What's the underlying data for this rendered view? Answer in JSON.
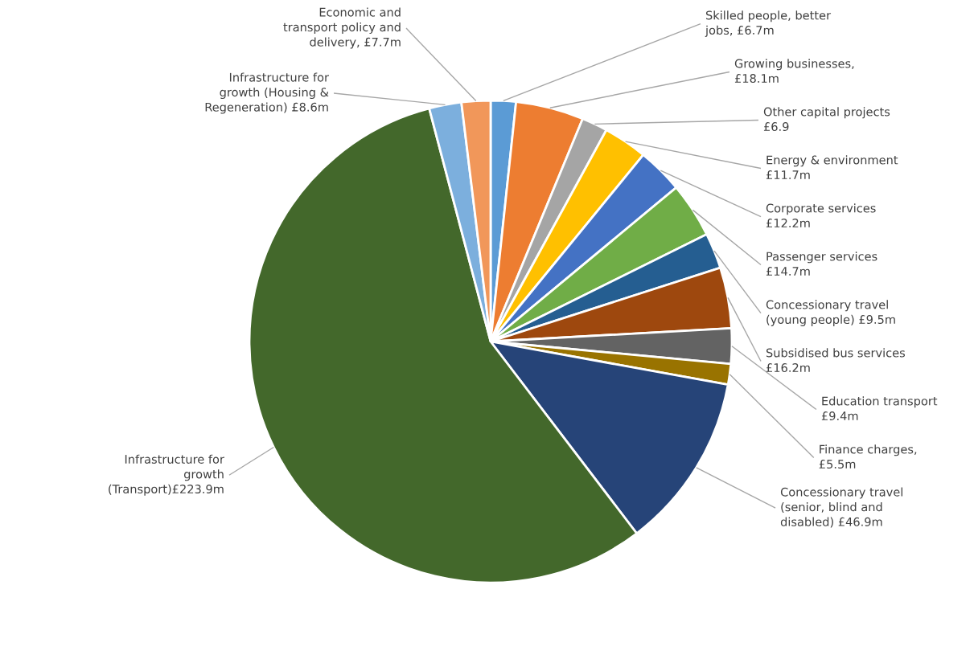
{
  "chart_data": {
    "type": "pie",
    "categories": [
      "Skilled people, better\njobs, £6.7m",
      "Growing businesses,\n£18.1m",
      "Other capital projects\n£6.9",
      "Energy & environment\n£11.7m",
      "Corporate services\n£12.2m",
      "Passenger services\n£14.7m",
      "Concessionary travel\n(young people) £9.5m",
      "Subsidised bus services\n£16.2m",
      "Education transport\n£9.4m",
      "Finance charges,\n£5.5m",
      "Concessionary travel\n(senior, blind and\ndisabled) £46.9m",
      "Infrastructure for\ngrowth\n(Transport)£223.9m",
      "Infrastructure for\ngrowth (Housing &\nRegeneration) £8.6m",
      "Economic and\ntransport policy and\ndelivery, £7.7m"
    ],
    "values": [
      6.7,
      18.1,
      6.9,
      11.7,
      12.2,
      14.7,
      9.5,
      16.2,
      9.4,
      5.5,
      46.9,
      223.9,
      8.6,
      7.7
    ],
    "colors": [
      "#5b9bd5",
      "#ed7d31",
      "#a5a5a5",
      "#ffc000",
      "#4472c4",
      "#70ad47",
      "#255e91",
      "#9e480e",
      "#636363",
      "#997300",
      "#264478",
      "#43682b",
      "#7cafdd",
      "#f1975a"
    ],
    "legend": false
  }
}
